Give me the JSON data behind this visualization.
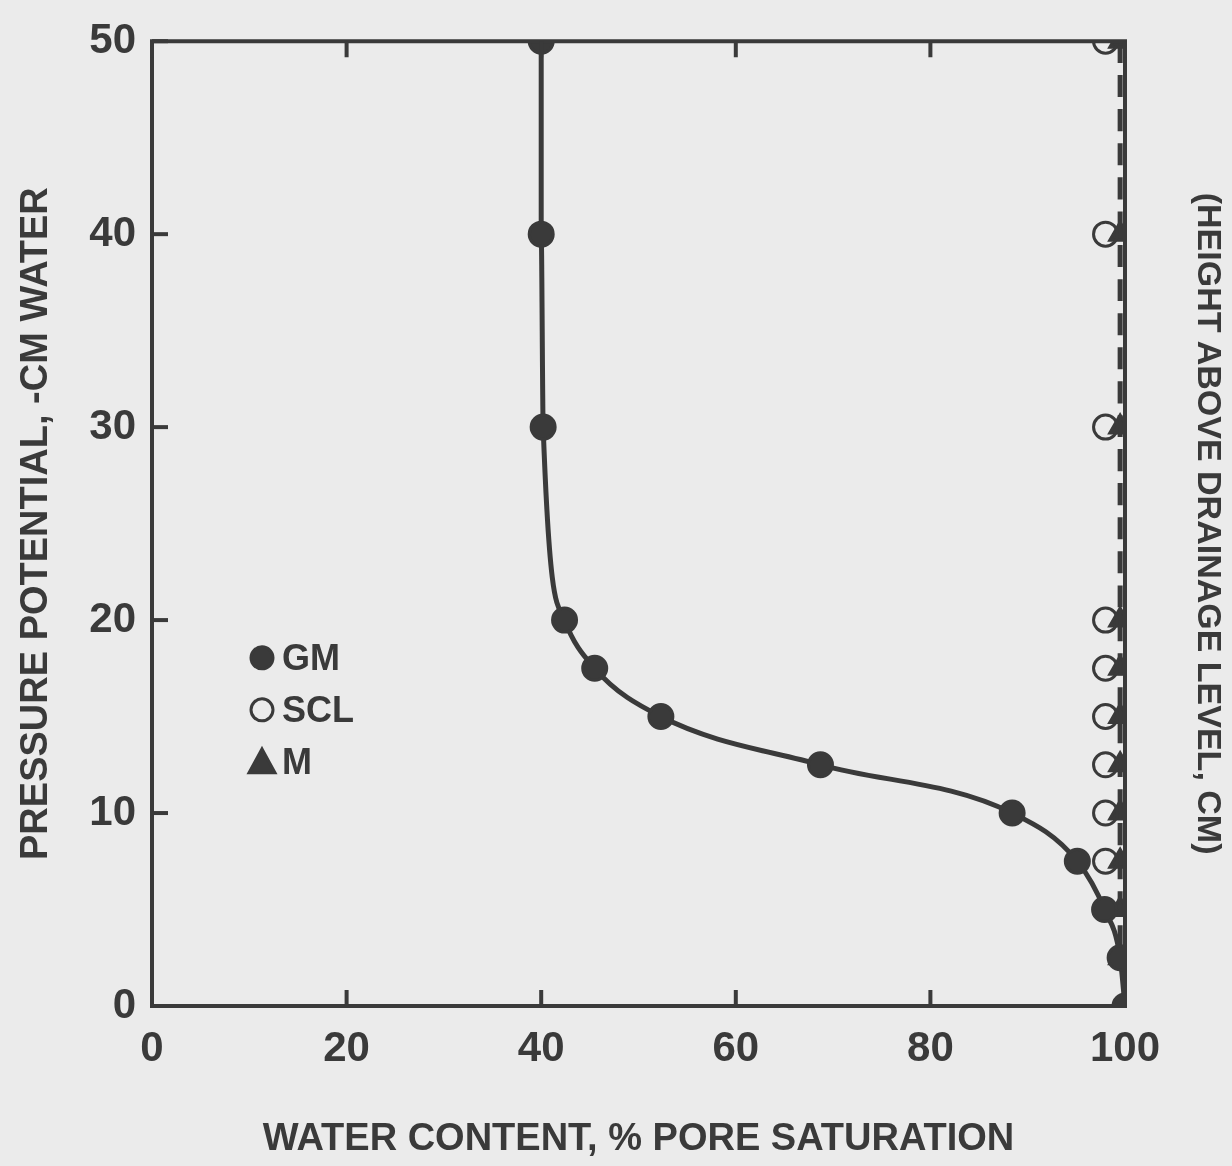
{
  "chart_data": {
    "type": "line",
    "xlabel": "WATER CONTENT, % PORE SATURATION",
    "ylabel": "PRESSURE POTENTIAL, -CM WATER",
    "y2label": "(HEIGHT ABOVE DRAINAGE LEVEL, CM)",
    "xlim": [
      0,
      100
    ],
    "xticks": [
      0,
      20,
      40,
      60,
      80,
      100
    ],
    "ylim": [
      0,
      50
    ],
    "yticks": [
      0,
      10,
      20,
      30,
      40,
      50
    ],
    "grid": false,
    "legend": "left",
    "series": [
      {
        "name": "GM",
        "marker": "circle",
        "line_style": "solid",
        "color": "#3a3a3a",
        "x": [
          40,
          40,
          40.2,
          42.4,
          45.5,
          52.3,
          68.7,
          88.4,
          95.1,
          97.9,
          99.5,
          100
        ],
        "values": [
          50,
          40,
          30,
          20,
          17.5,
          15,
          12.5,
          10,
          7.5,
          5,
          2.5,
          0
        ]
      },
      {
        "name": "SCL",
        "type": "scatter",
        "marker": "circle",
        "color": "#3a3a3a",
        "x": [
          98,
          98,
          98,
          98,
          98,
          98,
          98,
          98,
          98
        ],
        "values": [
          50,
          40,
          30,
          20,
          17.5,
          15,
          12.5,
          10,
          7.5
        ]
      },
      {
        "name": "M",
        "marker": "triangle",
        "line_style": "dashed",
        "color": "#3a3a3a",
        "x": [
          99.5,
          99.5,
          99.5,
          99.5,
          99.5,
          99.5,
          99.5,
          99.5,
          99.5,
          99.5,
          99.5
        ],
        "values": [
          50,
          40,
          30,
          20,
          17.5,
          15,
          12.5,
          10,
          7.5,
          5,
          2.5
        ]
      }
    ]
  }
}
